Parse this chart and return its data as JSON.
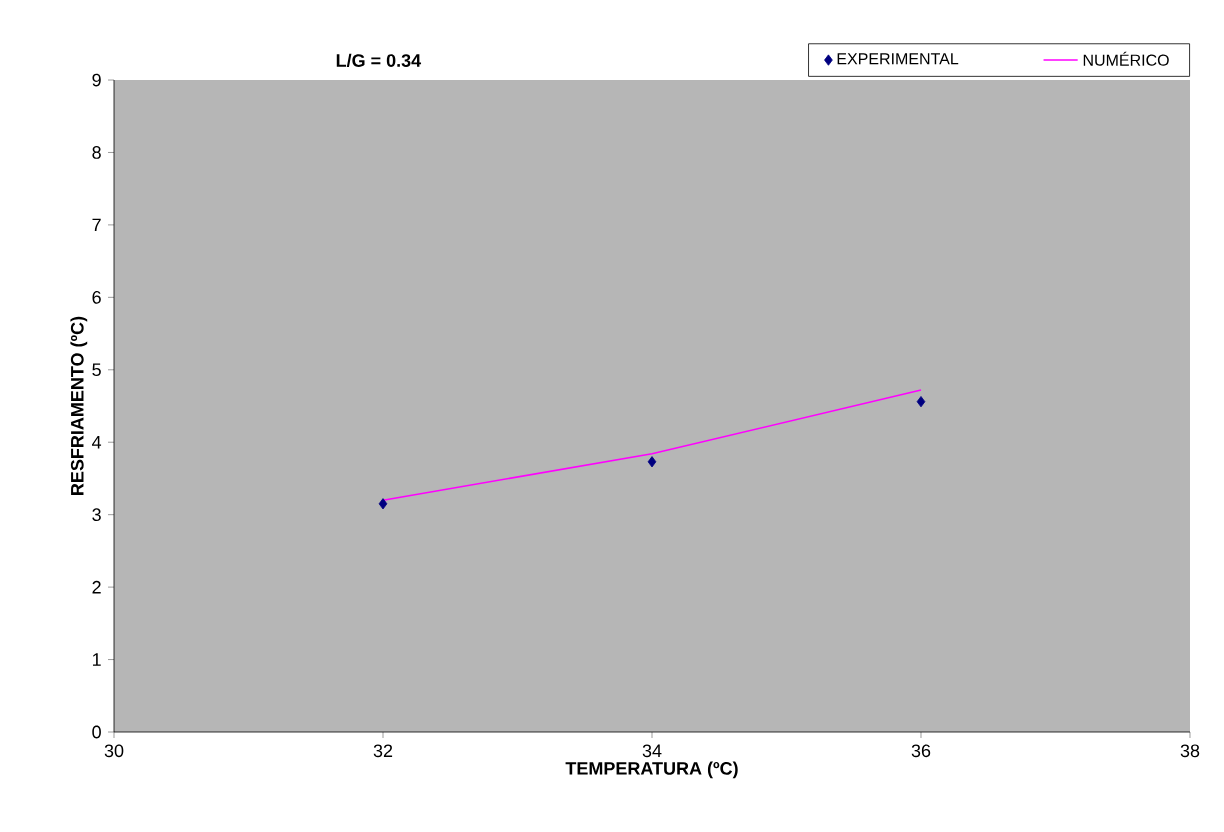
{
  "chart_data": {
    "type": "line",
    "title": "L/G = 0.34",
    "xlabel": "TEMPERATURA (ºC)",
    "ylabel": "RESFRIAMENTO (ºC)",
    "xlim": [
      30,
      38
    ],
    "xticks": [
      30,
      32,
      34,
      36,
      38
    ],
    "ylim": [
      0,
      9
    ],
    "yticks": [
      0,
      1,
      2,
      3,
      4,
      5,
      6,
      7,
      8,
      9
    ],
    "grid": false,
    "legend": "top",
    "series": [
      {
        "name": "EXPERIMENTAL",
        "type": "scatter",
        "marker": "diamond",
        "color": "#000080",
        "x": [
          32,
          34,
          36
        ],
        "values": [
          3.15,
          3.73,
          4.56
        ]
      },
      {
        "name": "NUMÉRICO",
        "marker": "none",
        "line_style": "solid",
        "color": "#ff00ff",
        "x": [
          32,
          34,
          36
        ],
        "values": [
          3.2,
          3.84,
          4.72
        ]
      }
    ]
  }
}
